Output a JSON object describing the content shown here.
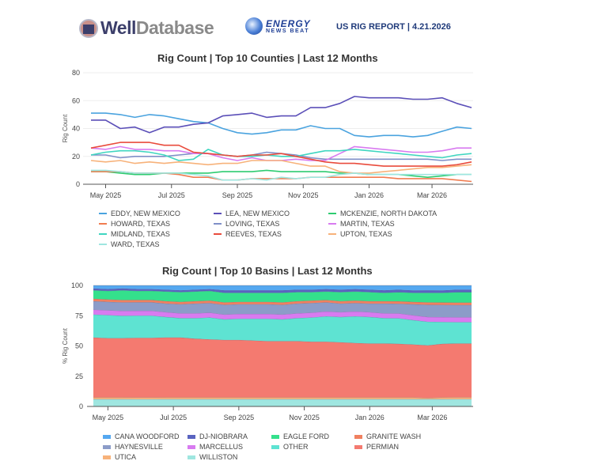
{
  "header": {
    "brand1_a": "Well",
    "brand1_b": "Database",
    "brand2_line1": "ENERGY",
    "brand2_line2": "NEWS BEAT",
    "report_title": "US RIG REPORT | 4.21.2026"
  },
  "chart_data": [
    {
      "type": "line",
      "title": "Rig Count | Top 10 Counties | Last 12 Months",
      "xlabel": "",
      "ylabel": "Rig Count",
      "ylim": [
        0,
        80
      ],
      "yticks": [
        0,
        20,
        40,
        60,
        80
      ],
      "grid": true,
      "legend_position": "bottom",
      "x_tick_labels": [
        "May 2025",
        "Jul 2025",
        "Sep 2025",
        "Nov 2025",
        "Jan 2026",
        "Mar 2026"
      ],
      "x_tick_index": [
        1,
        5.5,
        10,
        14.5,
        19,
        23.3
      ],
      "x_count": 27,
      "series": [
        {
          "name": "EDDY, NEW MEXICO",
          "color": "#4aa3df",
          "values": [
            51,
            51,
            50,
            48,
            50,
            49,
            47,
            45,
            44,
            40,
            37,
            36,
            37,
            39,
            39,
            42,
            40,
            40,
            35,
            34,
            35,
            35,
            34,
            35,
            38,
            41,
            40
          ]
        },
        {
          "name": "LEA, NEW MEXICO",
          "color": "#5b4fb8",
          "values": [
            46,
            46,
            40,
            41,
            37,
            41,
            41,
            43,
            44,
            49,
            50,
            51,
            48,
            49,
            49,
            55,
            55,
            58,
            63,
            62,
            62,
            62,
            61,
            61,
            62,
            58,
            55
          ]
        },
        {
          "name": "MCKENZIE, NORTH DAKOTA",
          "color": "#2ecc71",
          "values": [
            9,
            9,
            8,
            7,
            7,
            8,
            8,
            8,
            8,
            9,
            9,
            9,
            10,
            9,
            9,
            9,
            9,
            8,
            8,
            7,
            7,
            7,
            6,
            5,
            6,
            7,
            7
          ]
        },
        {
          "name": "HOWARD, TEXAS",
          "color": "#f07c50",
          "values": [
            9,
            9,
            9,
            8,
            8,
            8,
            7,
            5,
            5,
            3,
            3,
            4,
            4,
            4,
            4,
            5,
            5,
            5,
            5,
            5,
            5,
            4,
            4,
            4,
            4,
            3,
            2
          ]
        },
        {
          "name": "LOVING, TEXAS",
          "color": "#7f8fc8",
          "values": [
            21,
            21,
            19,
            20,
            20,
            20,
            21,
            22,
            22,
            21,
            20,
            21,
            23,
            22,
            21,
            19,
            18,
            18,
            18,
            18,
            18,
            18,
            18,
            18,
            17,
            18,
            18
          ]
        },
        {
          "name": "MARTIN, TEXAS",
          "color": "#d87bf0",
          "values": [
            26,
            25,
            27,
            25,
            25,
            24,
            24,
            22,
            22,
            19,
            17,
            19,
            17,
            17,
            18,
            17,
            17,
            22,
            27,
            26,
            25,
            24,
            23,
            23,
            24,
            26,
            26
          ]
        },
        {
          "name": "MIDLAND, TEXAS",
          "color": "#3fd6c0",
          "values": [
            21,
            23,
            24,
            24,
            23,
            21,
            17,
            18,
            25,
            21,
            20,
            20,
            21,
            20,
            20,
            22,
            24,
            24,
            25,
            24,
            23,
            22,
            21,
            20,
            19,
            21,
            22
          ]
        },
        {
          "name": "REEVES, TEXAS",
          "color": "#e94b3c",
          "values": [
            26,
            28,
            30,
            30,
            30,
            28,
            28,
            23,
            22,
            21,
            20,
            21,
            21,
            22,
            20,
            18,
            16,
            15,
            15,
            14,
            13,
            13,
            13,
            13,
            13,
            14,
            16
          ]
        },
        {
          "name": "UPTON, TEXAS",
          "color": "#f7b27a",
          "values": [
            17,
            16,
            17,
            15,
            16,
            15,
            16,
            15,
            14,
            15,
            15,
            17,
            17,
            17,
            15,
            13,
            13,
            9,
            8,
            8,
            9,
            10,
            11,
            12,
            12,
            13,
            14
          ]
        },
        {
          "name": "WARD, TEXAS",
          "color": "#9fe6e0",
          "values": [
            10,
            10,
            9,
            8,
            8,
            8,
            8,
            7,
            6,
            3,
            3,
            4,
            3,
            5,
            4,
            5,
            5,
            7,
            8,
            7,
            7,
            7,
            7,
            7,
            7,
            7,
            7
          ]
        }
      ]
    },
    {
      "type": "area",
      "stacked": true,
      "normalized_percent": true,
      "title": "Rig Count | Top 10 Basins | Last 12 Months",
      "xlabel": "",
      "ylabel": "% Rig Count",
      "ylim": [
        0,
        100
      ],
      "yticks": [
        0,
        25,
        50,
        75,
        100
      ],
      "legend_position": "bottom",
      "x_tick_labels": [
        "May 2025",
        "Jul 2025",
        "Sep 2025",
        "Nov 2025",
        "Jan 2026",
        "Mar 2026"
      ],
      "x_tick_index": [
        1,
        5.5,
        10,
        14.5,
        19,
        23.3
      ],
      "x_count": 27,
      "series_bottom_to_top": [
        {
          "name": "WILLISTON",
          "color": "#9fe6e0",
          "values": [
            6,
            6,
            6,
            6,
            6,
            6,
            6,
            6,
            6,
            6,
            6,
            6,
            6,
            6,
            6,
            6,
            6,
            6,
            6,
            6,
            6,
            6,
            6,
            6,
            6,
            6,
            6
          ]
        },
        {
          "name": "UTICA",
          "color": "#f7b27a",
          "values": [
            1.5,
            1.5,
            1.5,
            1.5,
            1.5,
            1.5,
            1.5,
            1.5,
            1.5,
            1.5,
            1.5,
            1.5,
            1.5,
            1.5,
            1.5,
            1.5,
            1.5,
            1.5,
            1.5,
            1.5,
            1.5,
            1.5,
            1.5,
            1,
            1.5,
            1.5,
            1.5
          ]
        },
        {
          "name": "PERMIAN",
          "color": "#f47a70",
          "values": [
            49.5,
            49,
            49,
            49.5,
            49.5,
            49.5,
            49.5,
            48.5,
            48,
            47.5,
            47.5,
            47,
            46.5,
            46.5,
            46.5,
            46,
            46,
            45.5,
            45,
            44.5,
            44.5,
            44,
            43.5,
            43.5,
            44,
            44,
            44
          ]
        },
        {
          "name": "OTHER",
          "color": "#5ee3d2",
          "values": [
            19,
            19,
            18.5,
            18.5,
            18.5,
            17,
            16,
            17,
            18,
            17,
            17.5,
            18,
            18.5,
            18,
            19,
            20,
            21,
            21,
            22,
            22,
            21,
            21,
            20,
            19.5,
            18,
            17.5,
            17.5
          ]
        },
        {
          "name": "MARCELLUS",
          "color": "#d87bf0",
          "values": [
            4,
            4,
            4,
            4,
            4,
            4,
            4,
            4,
            4,
            4,
            4,
            4,
            4,
            4,
            4,
            4,
            4,
            4,
            4,
            4,
            4,
            4,
            4,
            4,
            4,
            4,
            4
          ]
        },
        {
          "name": "HAYNESVILLE",
          "color": "#8c9cc8",
          "values": [
            7,
            7,
            7,
            7,
            7,
            7,
            7.5,
            8,
            8,
            8,
            8,
            8,
            8,
            8,
            8,
            8,
            7.5,
            7,
            7,
            7,
            8,
            8,
            9,
            10,
            10,
            10,
            10
          ]
        },
        {
          "name": "GRANITE WASH",
          "color": "#f08060",
          "values": [
            2,
            2,
            2,
            2,
            2,
            2,
            2,
            2,
            2,
            2,
            2,
            2,
            2,
            2,
            2,
            2,
            2,
            2,
            2,
            2,
            2,
            2,
            2,
            2,
            2,
            2,
            2
          ]
        },
        {
          "name": "EAGLE FORD",
          "color": "#34e08c",
          "values": [
            7,
            7,
            8,
            7.5,
            7.5,
            8,
            8,
            8,
            8,
            8,
            7.5,
            7.5,
            7.5,
            8,
            7.5,
            7,
            7,
            7.5,
            7.5,
            7.5,
            7,
            7.5,
            7.5,
            8,
            8,
            8.5,
            8.5
          ]
        },
        {
          "name": "DJ-NIOBRARA",
          "color": "#5a64c0",
          "values": [
            1.5,
            1.5,
            1.5,
            1.5,
            1.5,
            1.5,
            1.5,
            1.5,
            1.5,
            2,
            2,
            2,
            2,
            2,
            2,
            2,
            2,
            2,
            2,
            2,
            2,
            2,
            2,
            2,
            2,
            2,
            2
          ]
        },
        {
          "name": "CANA WOODFORD",
          "color": "#55a8f0",
          "values": [
            2.5,
            3,
            2.5,
            3,
            3,
            3.5,
            4,
            3.5,
            3,
            4,
            4,
            4,
            4,
            4,
            3.5,
            3.5,
            3,
            3.5,
            3,
            3.5,
            4,
            3.5,
            4,
            4,
            4,
            3.5,
            3.5
          ]
        }
      ]
    }
  ],
  "legend_top": [
    "EDDY, NEW MEXICO",
    "LEA, NEW MEXICO",
    "MCKENZIE, NORTH DAKOTA",
    "HOWARD, TEXAS",
    "LOVING, TEXAS",
    "MARTIN, TEXAS",
    "MIDLAND, TEXAS",
    "REEVES, TEXAS",
    "UPTON, TEXAS",
    "WARD, TEXAS"
  ],
  "legend_bottom": [
    "CANA WOODFORD",
    "DJ-NIOBRARA",
    "EAGLE FORD",
    "GRANITE WASH",
    "HAYNESVILLE",
    "MARCELLUS",
    "OTHER",
    "PERMIAN",
    "UTICA",
    "WILLISTON"
  ]
}
